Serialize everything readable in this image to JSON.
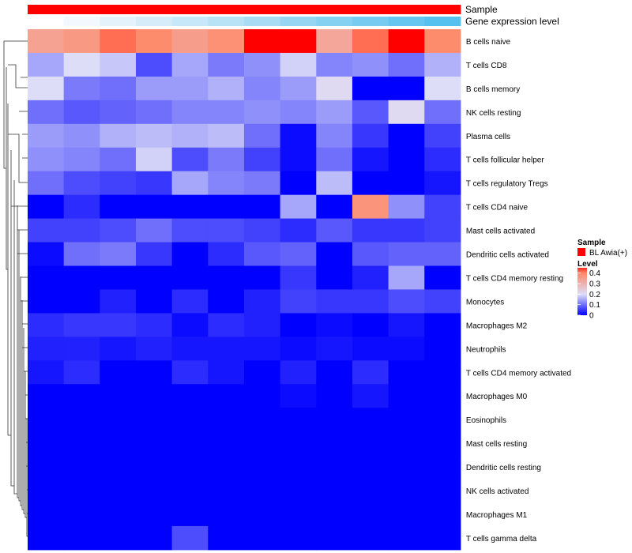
{
  "chart_data": {
    "type": "heatmap",
    "annotation_tracks": [
      {
        "name": "Sample",
        "colors": [
          "#ff0000",
          "#ff0000",
          "#ff0000",
          "#ff0000",
          "#ff0000",
          "#ff0000",
          "#ff0000",
          "#ff0000",
          "#ff0000",
          "#ff0000",
          "#ff0000",
          "#ff0000"
        ]
      },
      {
        "name": "Gene expression level",
        "colors": [
          "#ffffff",
          "#f2f8fd",
          "#e4f3fb",
          "#d6edf9",
          "#c7e8f8",
          "#b8e3f6",
          "#a8dcf4",
          "#97d6f3",
          "#86d1f2",
          "#76ccf0",
          "#66c6ef",
          "#56c1ee"
        ]
      }
    ],
    "rows": [
      "B cells naive",
      "T cells CD8",
      "B cells memory",
      "NK cells resting",
      "Plasma cells",
      "T cells follicular helper",
      "T cells regulatory  Tregs",
      "T cells CD4 naive",
      "Mast cells activated",
      "Dendritic cells activated",
      "T cells CD4 memory resting",
      "Monocytes",
      "Macrophages M2",
      "Neutrophils",
      "T cells CD4 memory activated",
      "Macrophages M0",
      "Eosinophils",
      "Mast cells resting",
      "Dendritic cells resting",
      "NK cells activated",
      "Macrophages M1",
      "T cells gamma delta"
    ],
    "values": [
      [
        0.34,
        0.36,
        0.41,
        0.39,
        0.35,
        0.38,
        0.45,
        0.45,
        0.33,
        0.41,
        0.45,
        0.39
      ],
      [
        0.15,
        0.2,
        0.18,
        0.07,
        0.15,
        0.11,
        0.13,
        0.19,
        0.12,
        0.13,
        0.1,
        0.16
      ],
      [
        0.2,
        0.11,
        0.1,
        0.14,
        0.14,
        0.16,
        0.12,
        0.14,
        0.21,
        0.0,
        0.0,
        0.2
      ],
      [
        0.1,
        0.08,
        0.09,
        0.1,
        0.12,
        0.12,
        0.13,
        0.12,
        0.14,
        0.08,
        0.21,
        0.1
      ],
      [
        0.14,
        0.13,
        0.16,
        0.17,
        0.16,
        0.17,
        0.1,
        0.01,
        0.12,
        0.05,
        0.0,
        0.06
      ],
      [
        0.13,
        0.12,
        0.1,
        0.19,
        0.07,
        0.11,
        0.06,
        0.01,
        0.1,
        0.02,
        0.0,
        0.04
      ],
      [
        0.1,
        0.07,
        0.06,
        0.05,
        0.15,
        0.12,
        0.11,
        0.0,
        0.17,
        0.0,
        0.0,
        0.02
      ],
      [
        0.0,
        0.04,
        0.0,
        0.0,
        0.0,
        0.0,
        0.0,
        0.15,
        0.0,
        0.37,
        0.13,
        0.06
      ],
      [
        0.06,
        0.06,
        0.07,
        0.1,
        0.07,
        0.07,
        0.06,
        0.04,
        0.08,
        0.05,
        0.05,
        0.06
      ],
      [
        0.01,
        0.1,
        0.11,
        0.05,
        0.0,
        0.04,
        0.08,
        0.09,
        0.0,
        0.08,
        0.09,
        0.09
      ],
      [
        0.0,
        0.0,
        0.0,
        0.0,
        0.0,
        0.0,
        0.0,
        0.05,
        0.0,
        0.03,
        0.15,
        0.0
      ],
      [
        0.0,
        0.0,
        0.03,
        0.0,
        0.04,
        0.0,
        0.03,
        0.06,
        0.05,
        0.05,
        0.07,
        0.06
      ],
      [
        0.04,
        0.05,
        0.05,
        0.04,
        0.01,
        0.04,
        0.03,
        0.0,
        0.01,
        0.0,
        0.02,
        0.0
      ],
      [
        0.03,
        0.03,
        0.02,
        0.03,
        0.02,
        0.02,
        0.02,
        0.01,
        0.02,
        0.01,
        0.01,
        0.0
      ],
      [
        0.02,
        0.04,
        0.0,
        0.0,
        0.04,
        0.02,
        0.0,
        0.03,
        0.0,
        0.04,
        0.0,
        0.0
      ],
      [
        0.0,
        0.0,
        0.0,
        0.0,
        0.0,
        0.0,
        0.0,
        0.01,
        0.0,
        0.02,
        0.0,
        0.0
      ],
      [
        0.0,
        0.0,
        0.0,
        0.0,
        0.0,
        0.0,
        0.0,
        0.0,
        0.0,
        0.0,
        0.0,
        0.0
      ],
      [
        0.0,
        0.0,
        0.0,
        0.0,
        0.0,
        0.0,
        0.0,
        0.0,
        0.0,
        0.0,
        0.0,
        0.0
      ],
      [
        0.0,
        0.0,
        0.0,
        0.0,
        0.0,
        0.0,
        0.0,
        0.0,
        0.0,
        0.0,
        0.0,
        0.0
      ],
      [
        0.0,
        0.0,
        0.0,
        0.0,
        0.0,
        0.0,
        0.0,
        0.0,
        0.0,
        0.0,
        0.0,
        0.0
      ],
      [
        0.0,
        0.0,
        0.0,
        0.0,
        0.0,
        0.0,
        0.0,
        0.0,
        0.0,
        0.0,
        0.0,
        0.0
      ],
      [
        0.0,
        0.0,
        0.0,
        0.0,
        0.07,
        0.0,
        0.0,
        0.0,
        0.0,
        0.0,
        0.0,
        0.0
      ]
    ],
    "color_scale": {
      "stops": [
        {
          "value": 0.0,
          "color": "#0000ff"
        },
        {
          "value": 0.2,
          "color": "#ddddf8"
        },
        {
          "value": 0.4,
          "color": "#ff8866"
        },
        {
          "value": 0.45,
          "color": "#ff0000"
        }
      ]
    },
    "row_dendrogram": true,
    "legend": {
      "sample_title": "Sample",
      "sample_entry": "BL Awia(+)",
      "sample_color": "#ff0000",
      "level_title": "Level",
      "level_ticks": [
        "0.4",
        "0.3",
        "0.2",
        "0.1",
        "0"
      ],
      "level_tick_values": [
        0.4,
        0.3,
        0.2,
        0.1,
        0.0
      ],
      "level_range": [
        0,
        0.45
      ]
    }
  }
}
